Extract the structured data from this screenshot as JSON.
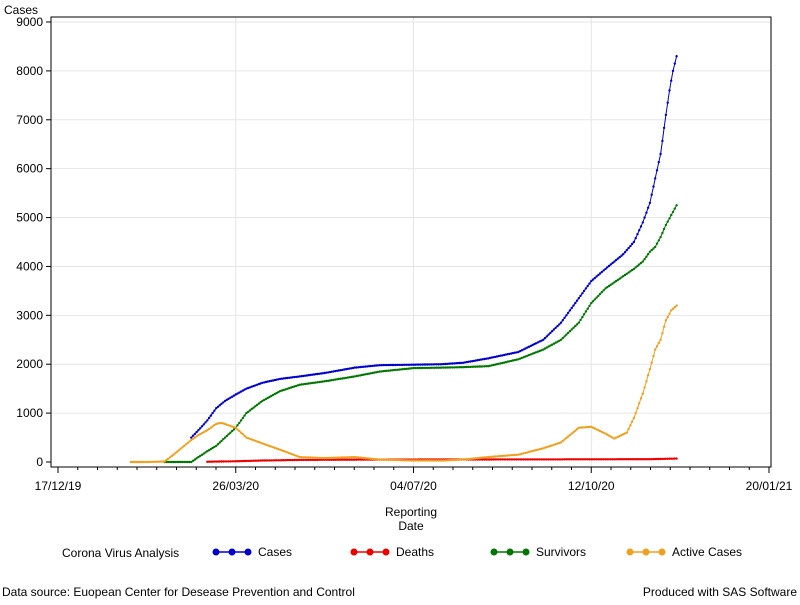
{
  "chart_data": {
    "type": "line",
    "title": "",
    "xlabel": "Reporting Date",
    "xlabel_lines": [
      "Reporting",
      "Date"
    ],
    "ylabel": "Cases",
    "ylim": [
      0,
      9000
    ],
    "xlim": [
      "2019-12-17",
      "2021-01-20"
    ],
    "x_ticks": [
      "17/12/19",
      "26/03/20",
      "04/07/20",
      "12/10/20",
      "20/01/21"
    ],
    "y_ticks": [
      "0",
      "1000",
      "2000",
      "3000",
      "4000",
      "5000",
      "6000",
      "7000",
      "8000",
      "9000"
    ],
    "grid": true,
    "legend": {
      "title": "Corona Virus Analysis",
      "placement": "bottom"
    },
    "series": [
      {
        "name": "Cases",
        "color": "#0000cc",
        "points": [
          [
            "2020-03-01",
            500
          ],
          [
            "2020-03-05",
            650
          ],
          [
            "2020-03-10",
            850
          ],
          [
            "2020-03-15",
            1100
          ],
          [
            "2020-03-20",
            1250
          ],
          [
            "2020-03-26",
            1380
          ],
          [
            "2020-04-01",
            1500
          ],
          [
            "2020-04-10",
            1620
          ],
          [
            "2020-04-20",
            1700
          ],
          [
            "2020-05-01",
            1750
          ],
          [
            "2020-05-15",
            1820
          ],
          [
            "2020-06-01",
            1930
          ],
          [
            "2020-06-15",
            1980
          ],
          [
            "2020-07-04",
            1990
          ],
          [
            "2020-07-20",
            2000
          ],
          [
            "2020-08-01",
            2030
          ],
          [
            "2020-08-15",
            2120
          ],
          [
            "2020-09-01",
            2250
          ],
          [
            "2020-09-15",
            2500
          ],
          [
            "2020-09-25",
            2850
          ],
          [
            "2020-10-05",
            3350
          ],
          [
            "2020-10-12",
            3700
          ],
          [
            "2020-10-20",
            3950
          ],
          [
            "2020-10-30",
            4250
          ],
          [
            "2020-11-05",
            4500
          ],
          [
            "2020-11-10",
            4900
          ],
          [
            "2020-11-14",
            5300
          ],
          [
            "2020-11-17",
            5800
          ],
          [
            "2020-11-20",
            6300
          ],
          [
            "2020-11-23",
            7100
          ],
          [
            "2020-11-25",
            7600
          ],
          [
            "2020-11-27",
            8000
          ],
          [
            "2020-11-29",
            8300
          ]
        ]
      },
      {
        "name": "Deaths",
        "color": "#ee0000",
        "points": [
          [
            "2020-03-10",
            5
          ],
          [
            "2020-03-26",
            15
          ],
          [
            "2020-04-10",
            30
          ],
          [
            "2020-05-01",
            42
          ],
          [
            "2020-06-01",
            48
          ],
          [
            "2020-07-04",
            50
          ],
          [
            "2020-08-15",
            52
          ],
          [
            "2020-10-12",
            55
          ],
          [
            "2020-11-15",
            58
          ],
          [
            "2020-11-29",
            70
          ]
        ]
      },
      {
        "name": "Survivors",
        "color": "#007700",
        "points": [
          [
            "2020-02-15",
            0
          ],
          [
            "2020-03-01",
            0
          ],
          [
            "2020-03-05",
            100
          ],
          [
            "2020-03-10",
            220
          ],
          [
            "2020-03-15",
            330
          ],
          [
            "2020-03-20",
            500
          ],
          [
            "2020-03-26",
            700
          ],
          [
            "2020-04-01",
            1000
          ],
          [
            "2020-04-10",
            1250
          ],
          [
            "2020-04-20",
            1450
          ],
          [
            "2020-05-01",
            1580
          ],
          [
            "2020-05-15",
            1650
          ],
          [
            "2020-06-01",
            1750
          ],
          [
            "2020-06-15",
            1850
          ],
          [
            "2020-07-04",
            1920
          ],
          [
            "2020-07-20",
            1930
          ],
          [
            "2020-08-01",
            1940
          ],
          [
            "2020-08-15",
            1960
          ],
          [
            "2020-09-01",
            2100
          ],
          [
            "2020-09-15",
            2300
          ],
          [
            "2020-09-25",
            2500
          ],
          [
            "2020-10-05",
            2850
          ],
          [
            "2020-10-12",
            3250
          ],
          [
            "2020-10-20",
            3550
          ],
          [
            "2020-10-30",
            3800
          ],
          [
            "2020-11-05",
            3950
          ],
          [
            "2020-11-10",
            4100
          ],
          [
            "2020-11-14",
            4300
          ],
          [
            "2020-11-17",
            4400
          ],
          [
            "2020-11-20",
            4600
          ],
          [
            "2020-11-23",
            4850
          ],
          [
            "2020-11-26",
            5050
          ],
          [
            "2020-11-29",
            5250
          ]
        ]
      },
      {
        "name": "Active Cases",
        "color": "#f0a020",
        "points": [
          [
            "2020-01-27",
            0
          ],
          [
            "2020-02-05",
            0
          ],
          [
            "2020-02-15",
            10
          ],
          [
            "2020-02-20",
            150
          ],
          [
            "2020-02-25",
            300
          ],
          [
            "2020-03-01",
            450
          ],
          [
            "2020-03-05",
            550
          ],
          [
            "2020-03-10",
            650
          ],
          [
            "2020-03-15",
            780
          ],
          [
            "2020-03-18",
            800
          ],
          [
            "2020-03-22",
            750
          ],
          [
            "2020-03-26",
            700
          ],
          [
            "2020-04-01",
            500
          ],
          [
            "2020-04-10",
            380
          ],
          [
            "2020-04-20",
            250
          ],
          [
            "2020-05-01",
            100
          ],
          [
            "2020-05-15",
            80
          ],
          [
            "2020-06-01",
            100
          ],
          [
            "2020-06-15",
            50
          ],
          [
            "2020-07-04",
            30
          ],
          [
            "2020-07-20",
            30
          ],
          [
            "2020-08-01",
            50
          ],
          [
            "2020-08-15",
            100
          ],
          [
            "2020-09-01",
            150
          ],
          [
            "2020-09-15",
            280
          ],
          [
            "2020-09-25",
            400
          ],
          [
            "2020-10-05",
            700
          ],
          [
            "2020-10-12",
            720
          ],
          [
            "2020-10-20",
            580
          ],
          [
            "2020-10-25",
            480
          ],
          [
            "2020-11-01",
            600
          ],
          [
            "2020-11-05",
            900
          ],
          [
            "2020-11-10",
            1400
          ],
          [
            "2020-11-14",
            1900
          ],
          [
            "2020-11-17",
            2300
          ],
          [
            "2020-11-20",
            2500
          ],
          [
            "2020-11-23",
            2900
          ],
          [
            "2020-11-26",
            3100
          ],
          [
            "2020-11-29",
            3200
          ]
        ]
      }
    ]
  },
  "footer": {
    "source": "Data source: Euopean Center for Desease Prevention and Control",
    "credit": "Produced with SAS Software"
  }
}
